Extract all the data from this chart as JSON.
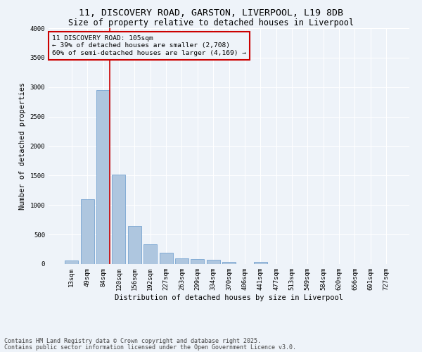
{
  "title_line1": "11, DISCOVERY ROAD, GARSTON, LIVERPOOL, L19 8DB",
  "title_line2": "Size of property relative to detached houses in Liverpool",
  "xlabel": "Distribution of detached houses by size in Liverpool",
  "ylabel": "Number of detached properties",
  "categories": [
    "13sqm",
    "49sqm",
    "84sqm",
    "120sqm",
    "156sqm",
    "192sqm",
    "227sqm",
    "263sqm",
    "299sqm",
    "334sqm",
    "370sqm",
    "406sqm",
    "441sqm",
    "477sqm",
    "513sqm",
    "549sqm",
    "584sqm",
    "620sqm",
    "656sqm",
    "691sqm",
    "727sqm"
  ],
  "values": [
    55,
    1100,
    2950,
    1520,
    650,
    340,
    195,
    95,
    85,
    75,
    35,
    5,
    30,
    5,
    0,
    0,
    0,
    0,
    0,
    0,
    0
  ],
  "bar_color": "#aec6df",
  "bar_edge_color": "#6699cc",
  "vline_color": "#cc0000",
  "vline_x_idx": 2,
  "annotation_text": "11 DISCOVERY ROAD: 105sqm\n← 39% of detached houses are smaller (2,708)\n60% of semi-detached houses are larger (4,169) →",
  "annotation_box_color": "#cc0000",
  "ylim": [
    0,
    4000
  ],
  "yticks": [
    0,
    500,
    1000,
    1500,
    2000,
    2500,
    3000,
    3500,
    4000
  ],
  "footer_line1": "Contains HM Land Registry data © Crown copyright and database right 2025.",
  "footer_line2": "Contains public sector information licensed under the Open Government Licence v3.0.",
  "bg_color": "#eef3f9",
  "grid_color": "#ffffff",
  "title_fontsize": 9.5,
  "subtitle_fontsize": 8.5,
  "axis_label_fontsize": 7.5,
  "tick_fontsize": 6.5,
  "annotation_fontsize": 6.8,
  "footer_fontsize": 6
}
